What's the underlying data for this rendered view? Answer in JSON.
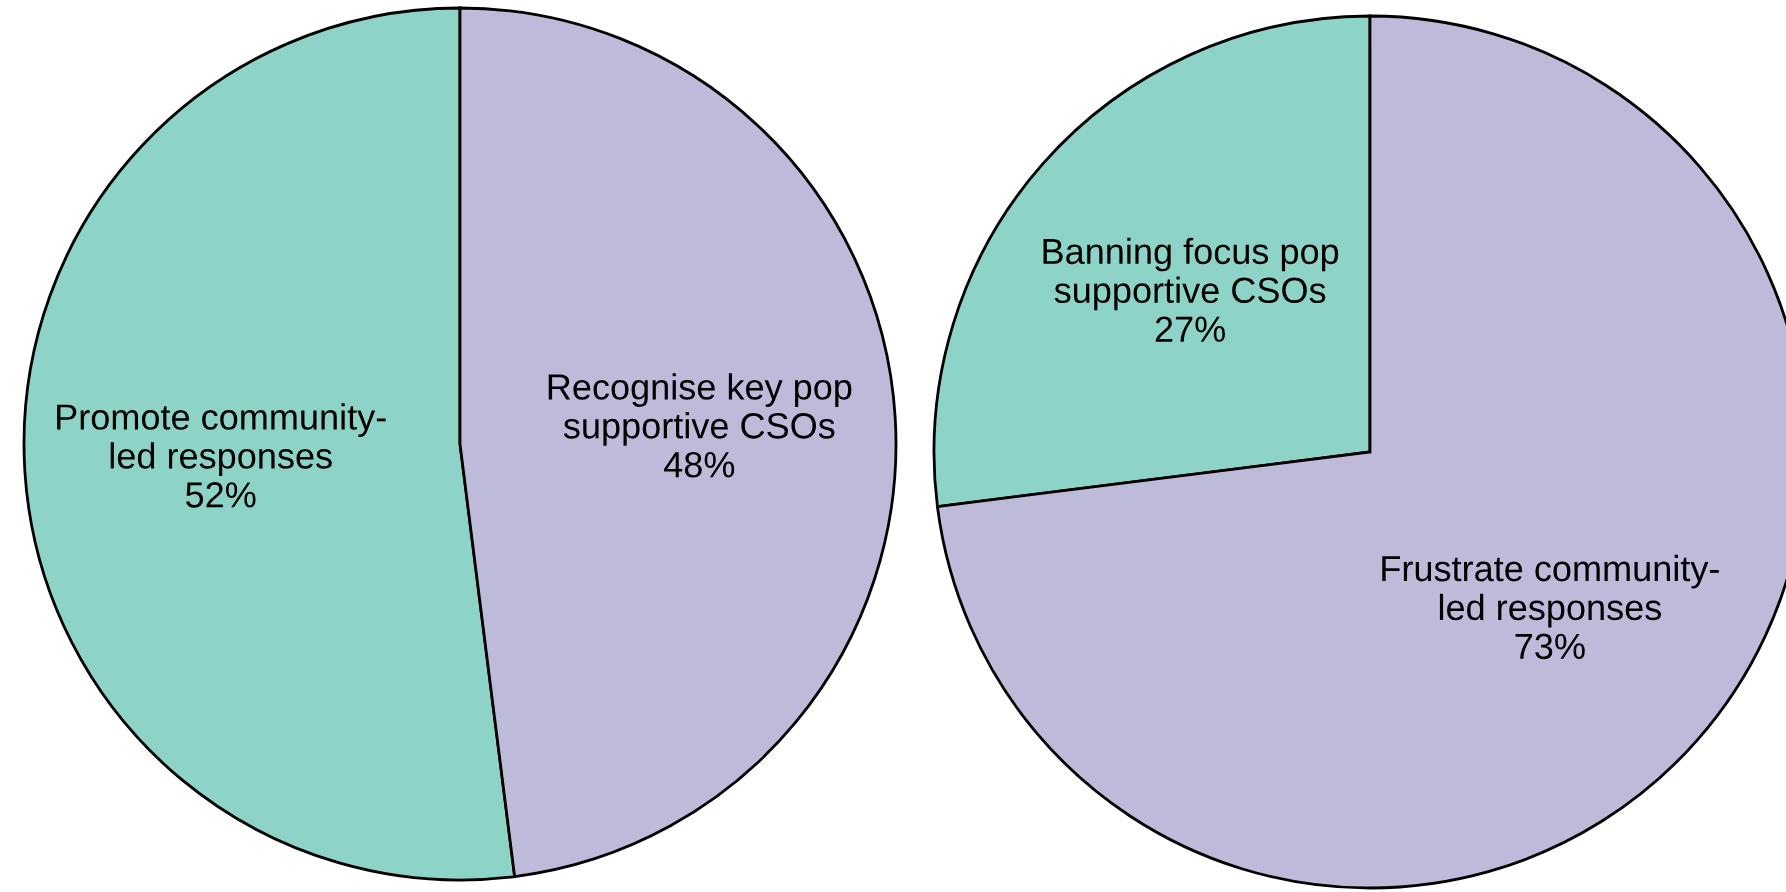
{
  "chart_data": [
    {
      "type": "pie",
      "categories": [
        "Promote community-\nled responses",
        "Recognise key pop\nsupportive CSOs"
      ],
      "values": [
        52,
        48
      ],
      "colors": [
        "#8dd3c7",
        "#bebada"
      ],
      "value_labels": [
        "52%",
        "48%"
      ]
    },
    {
      "type": "pie",
      "categories": [
        "Banning focus pop\nsupportive CSOs",
        "Frustrate community-\nled responses"
      ],
      "values": [
        27,
        73
      ],
      "colors": [
        "#8dd3c7",
        "#bebada"
      ],
      "value_labels": [
        "27%",
        "73%"
      ]
    }
  ]
}
